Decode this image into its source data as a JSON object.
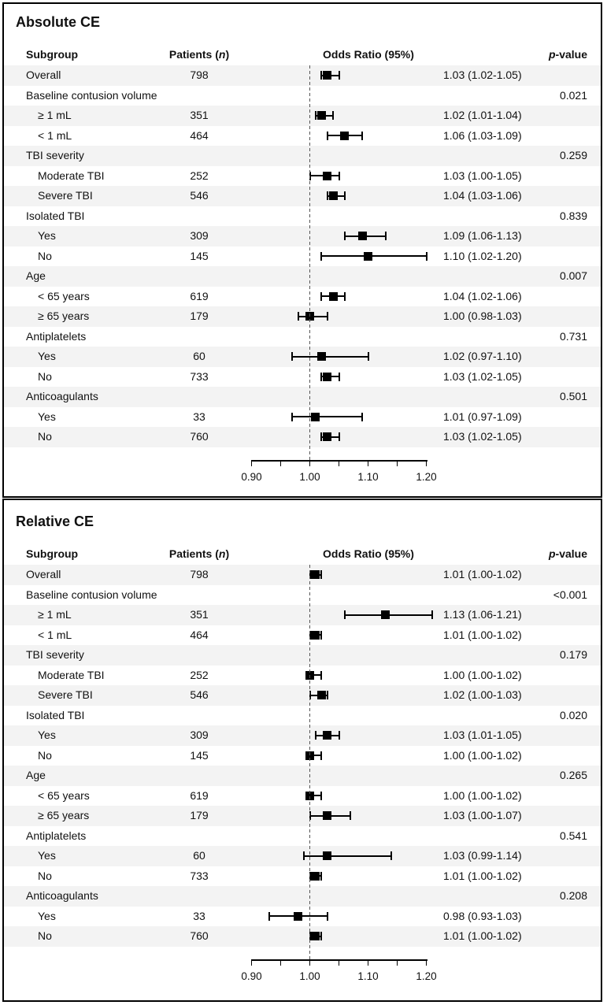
{
  "figure": {
    "description": "Two stacked forest plots of odds ratios by subgroup"
  },
  "colors": {
    "stripe": "#f3f3f3",
    "border": "#000000",
    "text": "#111111",
    "marker": "#000000",
    "reference_line": "#555555"
  },
  "chart_data": [
    {
      "type": "scatter",
      "variant": "forest-plot",
      "title": "Absolute CE",
      "columns": {
        "subgroup": "Subgroup",
        "patients_pre": "Patients (",
        "patients_n": "n",
        "patients_post": ")",
        "odds_ratio": "Odds Ratio (95%)",
        "p_italic": "p",
        "p_rest": "-value"
      },
      "xlim": [
        0.9,
        1.2
      ],
      "reference_line": 1.0,
      "xticks": [
        0.9,
        0.95,
        1.0,
        1.05,
        1.1,
        1.15,
        1.2
      ],
      "xtick_labels": [
        {
          "text": "0.90",
          "value": 0.9
        },
        {
          "text": "1.00",
          "value": 1.0
        },
        {
          "text": "1.10",
          "value": 1.1
        },
        {
          "text": "1.20",
          "value": 1.2
        }
      ],
      "rows": [
        {
          "label": "Overall",
          "indent": 0,
          "patients": "798",
          "or": 1.03,
          "lo": 1.02,
          "hi": 1.05,
          "or_text": "1.03 (1.02-1.05)",
          "p": ""
        },
        {
          "label": "Baseline contusion volume",
          "indent": 0,
          "group": true,
          "p": "0.021"
        },
        {
          "label": "≥ 1 mL",
          "indent": 1,
          "patients": "351",
          "or": 1.02,
          "lo": 1.01,
          "hi": 1.04,
          "or_text": "1.02 (1.01-1.04)",
          "p": ""
        },
        {
          "label": "< 1 mL",
          "indent": 1,
          "patients": "464",
          "or": 1.06,
          "lo": 1.03,
          "hi": 1.09,
          "or_text": "1.06 (1.03-1.09)",
          "p": ""
        },
        {
          "label": "TBI severity",
          "indent": 0,
          "group": true,
          "p": "0.259"
        },
        {
          "label": "Moderate TBI",
          "indent": 1,
          "patients": "252",
          "or": 1.03,
          "lo": 1.0,
          "hi": 1.05,
          "or_text": "1.03 (1.00-1.05)",
          "p": ""
        },
        {
          "label": "Severe TBI",
          "indent": 1,
          "patients": "546",
          "or": 1.04,
          "lo": 1.03,
          "hi": 1.06,
          "or_text": "1.04 (1.03-1.06)",
          "p": ""
        },
        {
          "label": "Isolated TBI",
          "indent": 0,
          "group": true,
          "p": "0.839"
        },
        {
          "label": "Yes",
          "indent": 1,
          "patients": "309",
          "or": 1.09,
          "lo": 1.06,
          "hi": 1.13,
          "or_text": "1.09 (1.06-1.13)",
          "p": ""
        },
        {
          "label": "No",
          "indent": 1,
          "patients": "145",
          "or": 1.1,
          "lo": 1.02,
          "hi": 1.2,
          "or_text": "1.10 (1.02-1.20)",
          "p": ""
        },
        {
          "label": "Age",
          "indent": 0,
          "group": true,
          "p": "0.007"
        },
        {
          "label": "< 65 years",
          "indent": 1,
          "patients": "619",
          "or": 1.04,
          "lo": 1.02,
          "hi": 1.06,
          "or_text": "1.04 (1.02-1.06)",
          "p": ""
        },
        {
          "label": "≥ 65 years",
          "indent": 1,
          "patients": "179",
          "or": 1.0,
          "lo": 0.98,
          "hi": 1.03,
          "or_text": "1.00 (0.98-1.03)",
          "p": ""
        },
        {
          "label": "Antiplatelets",
          "indent": 0,
          "group": true,
          "p": "0.731"
        },
        {
          "label": "Yes",
          "indent": 1,
          "patients": "60",
          "or": 1.02,
          "lo": 0.97,
          "hi": 1.1,
          "or_text": "1.02 (0.97-1.10)",
          "p": ""
        },
        {
          "label": "No",
          "indent": 1,
          "patients": "733",
          "or": 1.03,
          "lo": 1.02,
          "hi": 1.05,
          "or_text": "1.03 (1.02-1.05)",
          "p": ""
        },
        {
          "label": "Anticoagulants",
          "indent": 0,
          "group": true,
          "p": "0.501"
        },
        {
          "label": "Yes",
          "indent": 1,
          "patients": "33",
          "or": 1.01,
          "lo": 0.97,
          "hi": 1.09,
          "or_text": "1.01 (0.97-1.09)",
          "p": ""
        },
        {
          "label": "No",
          "indent": 1,
          "patients": "760",
          "or": 1.03,
          "lo": 1.02,
          "hi": 1.05,
          "or_text": "1.03 (1.02-1.05)",
          "p": ""
        }
      ]
    },
    {
      "type": "scatter",
      "variant": "forest-plot",
      "title": "Relative CE",
      "columns": {
        "subgroup": "Subgroup",
        "patients_pre": "Patients (",
        "patients_n": "n",
        "patients_post": ")",
        "odds_ratio": "Odds Ratio (95%)",
        "p_italic": "p",
        "p_rest": "-value"
      },
      "xlim": [
        0.9,
        1.2
      ],
      "reference_line": 1.0,
      "xticks": [
        0.9,
        0.95,
        1.0,
        1.05,
        1.1,
        1.15,
        1.2
      ],
      "xtick_labels": [
        {
          "text": "0.90",
          "value": 0.9
        },
        {
          "text": "1.00",
          "value": 1.0
        },
        {
          "text": "1.10",
          "value": 1.1
        },
        {
          "text": "1.20",
          "value": 1.2
        }
      ],
      "rows": [
        {
          "label": "Overall",
          "indent": 0,
          "patients": "798",
          "or": 1.01,
          "lo": 1.0,
          "hi": 1.02,
          "or_text": "1.01 (1.00-1.02)",
          "p": ""
        },
        {
          "label": "Baseline contusion volume",
          "indent": 0,
          "group": true,
          "p": "<0.001"
        },
        {
          "label": "≥ 1 mL",
          "indent": 1,
          "patients": "351",
          "or": 1.13,
          "lo": 1.06,
          "hi": 1.21,
          "or_text": "1.13 (1.06-1.21)",
          "p": ""
        },
        {
          "label": "< 1 mL",
          "indent": 1,
          "patients": "464",
          "or": 1.01,
          "lo": 1.0,
          "hi": 1.02,
          "or_text": "1.01 (1.00-1.02)",
          "p": ""
        },
        {
          "label": "TBI severity",
          "indent": 0,
          "group": true,
          "p": "0.179"
        },
        {
          "label": "Moderate TBI",
          "indent": 1,
          "patients": "252",
          "or": 1.0,
          "lo": 1.0,
          "hi": 1.02,
          "or_text": "1.00 (1.00-1.02)",
          "p": ""
        },
        {
          "label": "Severe TBI",
          "indent": 1,
          "patients": "546",
          "or": 1.02,
          "lo": 1.0,
          "hi": 1.03,
          "or_text": "1.02 (1.00-1.03)",
          "p": ""
        },
        {
          "label": "Isolated TBI",
          "indent": 0,
          "group": true,
          "p": "0.020"
        },
        {
          "label": "Yes",
          "indent": 1,
          "patients": "309",
          "or": 1.03,
          "lo": 1.01,
          "hi": 1.05,
          "or_text": "1.03 (1.01-1.05)",
          "p": ""
        },
        {
          "label": "No",
          "indent": 1,
          "patients": "145",
          "or": 1.0,
          "lo": 1.0,
          "hi": 1.02,
          "or_text": "1.00 (1.00-1.02)",
          "p": ""
        },
        {
          "label": "Age",
          "indent": 0,
          "group": true,
          "p": "0.265"
        },
        {
          "label": "< 65 years",
          "indent": 1,
          "patients": "619",
          "or": 1.0,
          "lo": 1.0,
          "hi": 1.02,
          "or_text": "1.00 (1.00-1.02)",
          "p": ""
        },
        {
          "label": "≥ 65 years",
          "indent": 1,
          "patients": "179",
          "or": 1.03,
          "lo": 1.0,
          "hi": 1.07,
          "or_text": "1.03 (1.00-1.07)",
          "p": ""
        },
        {
          "label": "Antiplatelets",
          "indent": 0,
          "group": true,
          "p": "0.541"
        },
        {
          "label": "Yes",
          "indent": 1,
          "patients": "60",
          "or": 1.03,
          "lo": 0.99,
          "hi": 1.14,
          "or_text": "1.03 (0.99-1.14)",
          "p": ""
        },
        {
          "label": "No",
          "indent": 1,
          "patients": "733",
          "or": 1.01,
          "lo": 1.0,
          "hi": 1.02,
          "or_text": "1.01 (1.00-1.02)",
          "p": ""
        },
        {
          "label": "Anticoagulants",
          "indent": 0,
          "group": true,
          "p": "0.208"
        },
        {
          "label": "Yes",
          "indent": 1,
          "patients": "33",
          "or": 0.98,
          "lo": 0.93,
          "hi": 1.03,
          "or_text": "0.98 (0.93-1.03)",
          "p": ""
        },
        {
          "label": "No",
          "indent": 1,
          "patients": "760",
          "or": 1.01,
          "lo": 1.0,
          "hi": 1.02,
          "or_text": "1.01 (1.00-1.02)",
          "p": ""
        }
      ]
    }
  ]
}
